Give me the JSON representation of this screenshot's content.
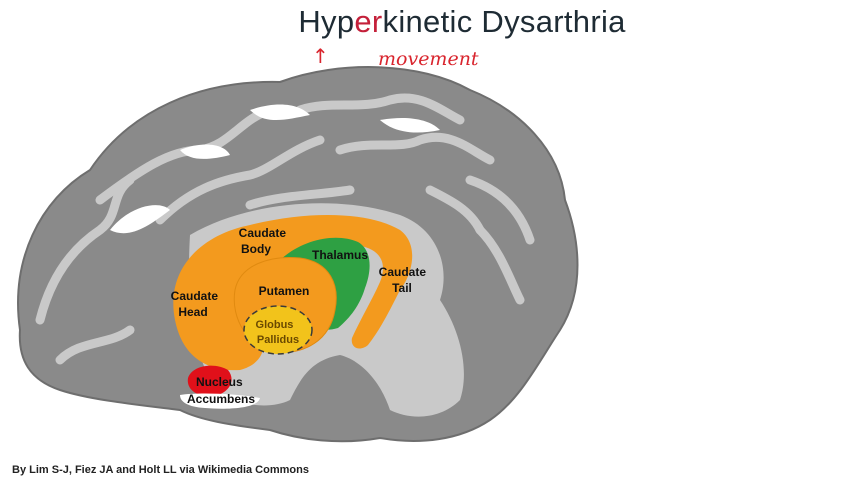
{
  "title": {
    "before": "Hyp",
    "highlight": "er",
    "after": "kinetic Dysarthria"
  },
  "annotations": {
    "arrow": "↑",
    "handwritten": "movement"
  },
  "structures": [
    {
      "id": "caudate-body",
      "lines": [
        "Caudate",
        "Body"
      ]
    },
    {
      "id": "thalamus",
      "lines": [
        "Thalamus"
      ]
    },
    {
      "id": "caudate-tail",
      "lines": [
        "Caudate",
        "Tail"
      ]
    },
    {
      "id": "caudate-head",
      "lines": [
        "Caudate",
        "Head"
      ]
    },
    {
      "id": "putamen",
      "lines": [
        "Putamen"
      ]
    },
    {
      "id": "globus-pallidus",
      "lines": [
        "Globus",
        "Pallidus"
      ]
    },
    {
      "id": "nucleus-accumbens",
      "lines": [
        "Nucleus",
        "Accumbens"
      ]
    }
  ],
  "colors": {
    "caudate": "#f39a1e",
    "thalamus": "#2ea043",
    "globus_pallidus": "#f2c31b",
    "nucleus_accumbens": "#e0101a",
    "cortex_dark": "#8a8a8a",
    "cortex_light": "#c9c9c9",
    "title_accent": "#c4203a",
    "annotation": "#d9252e"
  },
  "credit": "By Lim S-J, Fiez JA and Holt LL via Wikimedia Commons"
}
